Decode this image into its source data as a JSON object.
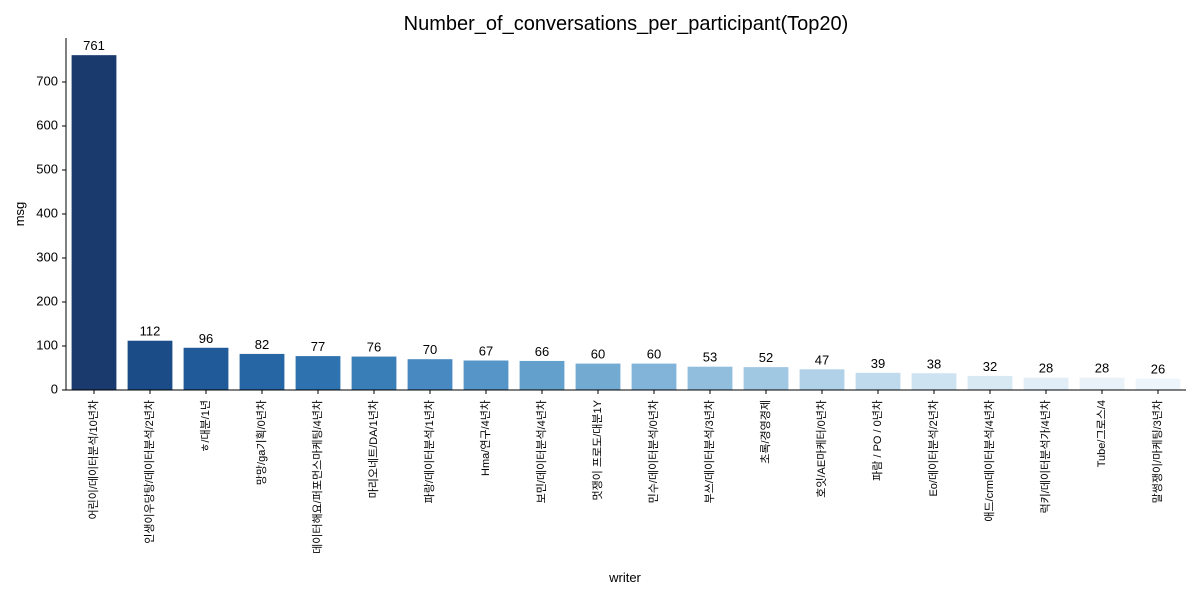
{
  "chart_data": {
    "type": "bar",
    "title": "Number_of_conversations_per_participant(Top20)",
    "xlabel": "writer",
    "ylabel": "msg",
    "ylim": [
      0,
      800
    ],
    "yticks": [
      0,
      100,
      200,
      300,
      400,
      500,
      600,
      700
    ],
    "grid": false,
    "categories": [
      "어린이/데이터분석/10년차",
      "인생이우당탕/데이터분석/2년차",
      "ㅎ/대분/1년",
      "망망/ga기획/0년차",
      "데이터해요/퍼포먼스마케팅/4년차",
      "마리오네트/DA/1년차",
      "파랑/데이터분석/1년차",
      "Hma/연구/4년차",
      "보민/데이터분석/4년차",
      "멋쟁이 프로도/대분1Y",
      "민수/데이터분석/0년차",
      "부쓰/데이터분석/3년차",
      "초록/경영경제",
      "호잇/AE마케터/0년차",
      "파람 / PO / 0년차",
      "Eo/데이터분석/2년차",
      "애드/crm데이터분석/4년차",
      "럭키/데이터분석가/4년차",
      "Tube/그로스/4",
      "말썽쟁이/마케팅/3년차"
    ],
    "values": [
      761,
      112,
      96,
      82,
      77,
      76,
      70,
      67,
      66,
      60,
      60,
      53,
      52,
      47,
      39,
      38,
      32,
      28,
      28,
      26
    ],
    "colors": [
      "#1a3a6e",
      "#1c4c87",
      "#215a98",
      "#2766a5",
      "#2e72b0",
      "#3a7eb8",
      "#4789c0",
      "#5595c7",
      "#63a0cc",
      "#72aad2",
      "#81b4d8",
      "#91bedd",
      "#a1c8e3",
      "#b1d1e8",
      "#c0daed",
      "#cde3f1",
      "#d8e9f4",
      "#e1eef7",
      "#e9f2f9",
      "#eef5fb"
    ]
  }
}
